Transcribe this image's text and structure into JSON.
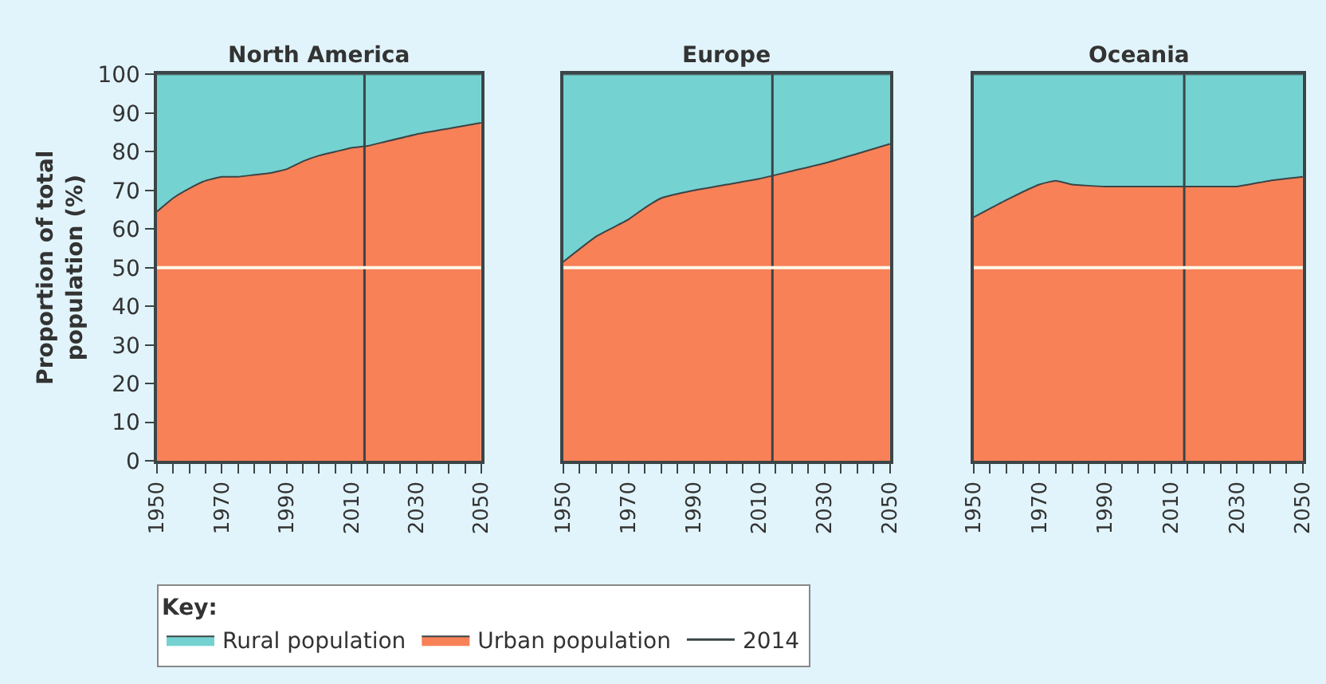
{
  "chart_data": [
    {
      "type": "area",
      "title": "North America",
      "ylabel": "Proportion of total population (%)",
      "stacked": true,
      "legend": "bottom",
      "legend_title": "Key:",
      "grid": false,
      "x": [
        1950,
        1955,
        1960,
        1965,
        1970,
        1975,
        1980,
        1985,
        1990,
        1995,
        2000,
        2005,
        2010,
        2015,
        2020,
        2030,
        2040,
        2050
      ],
      "series": [
        {
          "name": "Urban population",
          "color": "#f98157",
          "values": [
            64.5,
            68,
            70.5,
            72.5,
            73.5,
            73.5,
            74,
            74.5,
            75.5,
            77.5,
            79,
            80,
            81,
            81.5,
            82.5,
            84.5,
            86,
            87.5
          ]
        },
        {
          "name": "Rural population",
          "color": "#74d3d0",
          "values": [
            35.5,
            32,
            29.5,
            27.5,
            26.5,
            26.5,
            26,
            25.5,
            24.5,
            22.5,
            21,
            20,
            19,
            18.5,
            17.5,
            15.5,
            14,
            12.5
          ]
        }
      ],
      "xlim": [
        1950,
        2050
      ],
      "ylim": [
        0,
        100
      ],
      "xticks": [
        1950,
        {
          "value": 1955,
          "label": null
        },
        {
          "value": 1960,
          "label": null
        },
        {
          "value": 1965,
          "label": null
        },
        1970,
        {
          "value": 1975,
          "label": null
        },
        {
          "value": 1980,
          "label": null
        },
        {
          "value": 1985,
          "label": null
        },
        1990,
        {
          "value": 1995,
          "label": null
        },
        {
          "value": 2000,
          "label": null
        },
        {
          "value": 2005,
          "label": null
        },
        2010,
        {
          "value": 2015,
          "label": null
        },
        {
          "value": 2020,
          "label": null
        },
        {
          "value": 2025,
          "label": null
        },
        2030,
        {
          "value": 2035,
          "label": null
        },
        {
          "value": 2040,
          "label": null
        },
        {
          "value": 2045,
          "label": null
        },
        2050
      ],
      "yticks": [
        0,
        10,
        20,
        30,
        40,
        50,
        60,
        70,
        80,
        90,
        100
      ],
      "ref_lines": [
        {
          "axis": "x",
          "value": 2014,
          "label": "2014",
          "color": "#3b4446"
        },
        {
          "axis": "y",
          "value": 50,
          "label": null,
          "color": "#fff8e6"
        }
      ]
    },
    {
      "type": "area",
      "title": "Europe",
      "stacked": true,
      "grid": false,
      "tick_labels": "x",
      "x": [
        1950,
        1960,
        1970,
        1975,
        1980,
        1990,
        2000,
        2010,
        2020,
        2030,
        2040,
        2050
      ],
      "series": [
        {
          "color": "#f98157",
          "values": [
            51.5,
            58,
            62.5,
            65.5,
            68,
            70,
            71.5,
            73,
            75,
            77,
            79.5,
            82
          ]
        },
        {
          "color": "#74d3d0",
          "values": [
            48.5,
            42,
            37.5,
            34.5,
            32,
            30,
            28.5,
            27,
            25,
            23,
            20.5,
            18
          ]
        }
      ],
      "xlim": [
        1950,
        2050
      ],
      "ylim": [
        0,
        100
      ],
      "xticks": [
        1950,
        {
          "value": 1955,
          "label": null
        },
        {
          "value": 1960,
          "label": null
        },
        {
          "value": 1965,
          "label": null
        },
        1970,
        {
          "value": 1975,
          "label": null
        },
        {
          "value": 1980,
          "label": null
        },
        {
          "value": 1985,
          "label": null
        },
        1990,
        {
          "value": 1995,
          "label": null
        },
        {
          "value": 2000,
          "label": null
        },
        {
          "value": 2005,
          "label": null
        },
        2010,
        {
          "value": 2015,
          "label": null
        },
        {
          "value": 2020,
          "label": null
        },
        {
          "value": 2025,
          "label": null
        },
        2030,
        {
          "value": 2035,
          "label": null
        },
        {
          "value": 2040,
          "label": null
        },
        {
          "value": 2045,
          "label": null
        },
        2050
      ],
      "yticks": [
        0,
        10,
        20,
        30,
        40,
        50,
        60,
        70,
        80,
        90,
        100
      ],
      "ref_lines": [
        {
          "axis": "x",
          "value": 2014,
          "label": null,
          "color": "#3b4446"
        },
        {
          "axis": "y",
          "value": 50,
          "label": null,
          "color": "#fff8e6"
        }
      ]
    },
    {
      "type": "area",
      "title": "Oceania",
      "stacked": true,
      "grid": false,
      "tick_labels": "x",
      "x": [
        1950,
        1960,
        1970,
        1975,
        1980,
        1990,
        2000,
        2010,
        2020,
        2030,
        2040,
        2050
      ],
      "series": [
        {
          "color": "#f98157",
          "values": [
            63,
            67.5,
            71.5,
            72.5,
            71.5,
            71,
            71,
            71,
            71,
            71,
            72.5,
            73.5
          ]
        },
        {
          "color": "#74d3d0",
          "values": [
            37,
            32.5,
            28.5,
            27.5,
            28.5,
            29,
            29,
            29,
            29,
            29,
            27.5,
            26.5
          ]
        }
      ],
      "xlim": [
        1950,
        2050
      ],
      "ylim": [
        0,
        100
      ],
      "xticks": [
        1950,
        {
          "value": 1955,
          "label": null
        },
        {
          "value": 1960,
          "label": null
        },
        {
          "value": 1965,
          "label": null
        },
        1970,
        {
          "value": 1975,
          "label": null
        },
        {
          "value": 1980,
          "label": null
        },
        {
          "value": 1985,
          "label": null
        },
        1990,
        {
          "value": 1995,
          "label": null
        },
        {
          "value": 2000,
          "label": null
        },
        {
          "value": 2005,
          "label": null
        },
        2010,
        {
          "value": 2015,
          "label": null
        },
        {
          "value": 2020,
          "label": null
        },
        {
          "value": 2025,
          "label": null
        },
        2030,
        {
          "value": 2035,
          "label": null
        },
        {
          "value": 2040,
          "label": null
        },
        {
          "value": 2045,
          "label": null
        },
        2050
      ],
      "yticks": [
        0,
        10,
        20,
        30,
        40,
        50,
        60,
        70,
        80,
        90,
        100
      ],
      "ref_lines": [
        {
          "axis": "x",
          "value": 2014,
          "label": null,
          "color": "#3b4446"
        },
        {
          "axis": "y",
          "value": 50,
          "label": null,
          "color": "#fff8e6"
        }
      ]
    }
  ]
}
